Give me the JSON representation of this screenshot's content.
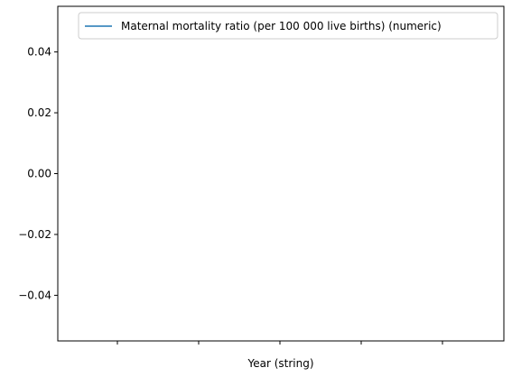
{
  "chart_data": {
    "type": "line",
    "title": "",
    "xlabel": "Year (string)",
    "ylabel": "",
    "x": [],
    "series": [
      {
        "name": "Maternal mortality ratio (per 100 000 live births) (numeric)",
        "values": [],
        "color": "#1f77b4"
      }
    ],
    "ylim": [
      -0.055,
      0.055
    ],
    "yticks": [
      "−0.04",
      "−0.02",
      "0.00",
      "0.02",
      "0.04"
    ],
    "ytick_values": [
      -0.04,
      -0.02,
      0.0,
      0.02,
      0.04
    ],
    "xtick_count": 5,
    "grid": false,
    "legend_position": "top-right"
  }
}
